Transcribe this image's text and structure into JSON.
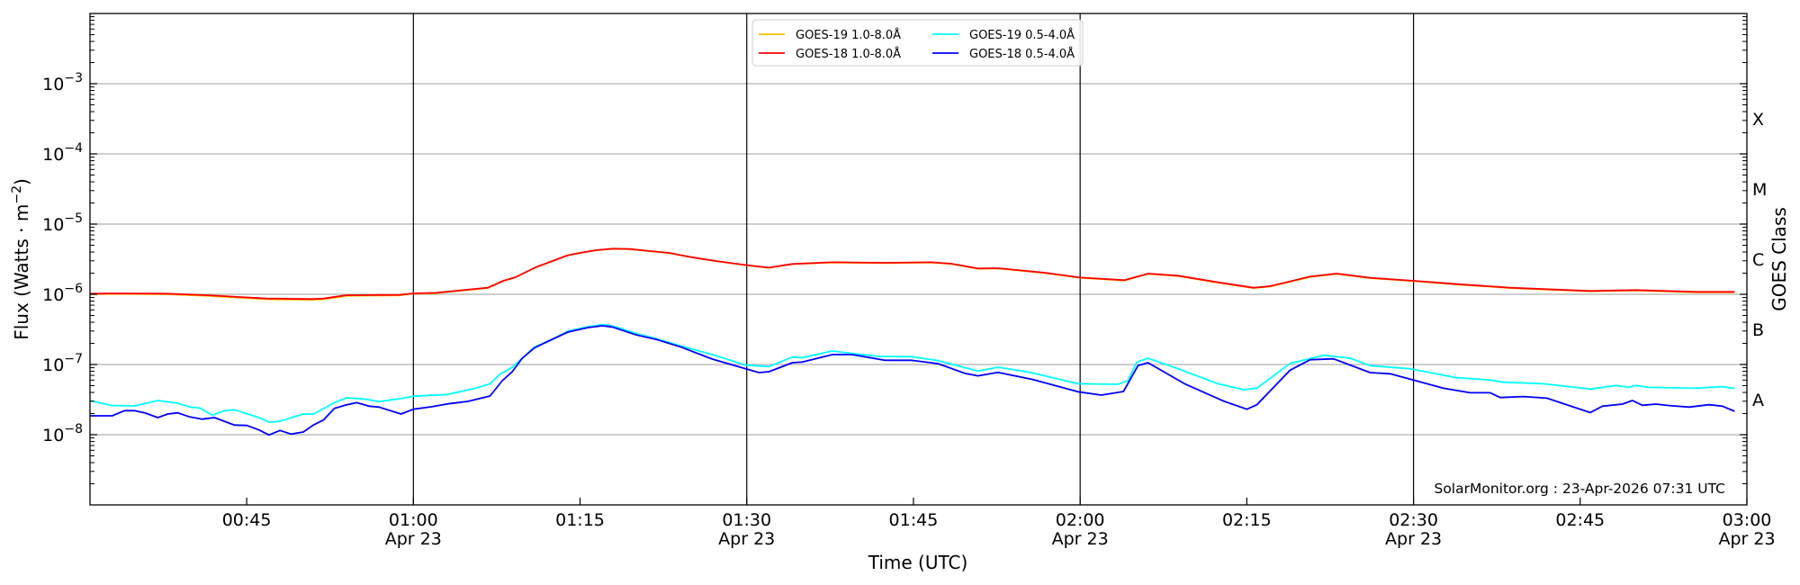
{
  "chart_data": {
    "type": "line",
    "title": "",
    "xlabel": "Time (UTC)",
    "ylabel": "Flux (Watts · m",
    "ylabel_exp": "−2",
    "ylabel_close": ")",
    "right_label": "GOES Class",
    "yscale": "log",
    "ylim_log10": [
      -9,
      -2
    ],
    "xlim_minutes": [
      30.9,
      180
    ],
    "x_units": "minutes after 00:00 UTC, 23-Apr-2026",
    "grid": "horizontal at decades; vertical at half hours",
    "legend_position": "top-center",
    "attribution": "SolarMonitor.org : 23-Apr-2026 07:31 UTC",
    "y_ticks": [
      {
        "log10": -3,
        "base": "10",
        "exp": "−3"
      },
      {
        "log10": -4,
        "base": "10",
        "exp": "−4"
      },
      {
        "log10": -5,
        "base": "10",
        "exp": "−5"
      },
      {
        "log10": -6,
        "base": "10",
        "exp": "−6"
      },
      {
        "log10": -7,
        "base": "10",
        "exp": "−7"
      },
      {
        "log10": -8,
        "base": "10",
        "exp": "−8"
      }
    ],
    "classes": [
      {
        "label": "X",
        "log10": -3.5
      },
      {
        "label": "M",
        "log10": -4.5
      },
      {
        "label": "C",
        "log10": -5.5
      },
      {
        "label": "B",
        "log10": -6.5
      },
      {
        "label": "A",
        "log10": -7.5
      }
    ],
    "x_ticks": [
      {
        "minutes": 45,
        "label": "00:45",
        "date": ""
      },
      {
        "minutes": 60,
        "label": "01:00",
        "date": "Apr 23",
        "vline": true
      },
      {
        "minutes": 75,
        "label": "01:15",
        "date": ""
      },
      {
        "minutes": 90,
        "label": "01:30",
        "date": "Apr 23",
        "vline": true
      },
      {
        "minutes": 105,
        "label": "01:45",
        "date": ""
      },
      {
        "minutes": 120,
        "label": "02:00",
        "date": "Apr 23",
        "vline": true
      },
      {
        "minutes": 135,
        "label": "02:15",
        "date": ""
      },
      {
        "minutes": 150,
        "label": "02:30",
        "date": "Apr 23",
        "vline": true
      },
      {
        "minutes": 165,
        "label": "02:45",
        "date": ""
      },
      {
        "minutes": 180,
        "label": "03:00",
        "date": "Apr 23"
      }
    ],
    "series": [
      {
        "name": "GOES-19 1.0-8.0Å",
        "color": "#ffc000",
        "x": [
          30.9,
          33.4,
          37.8,
          41.4,
          46.8,
          50.8,
          51.9,
          54.0,
          58.7,
          60.0,
          62.0,
          66.7,
          68.1,
          69.2,
          71.0,
          73.9,
          75,
          76.5,
          78,
          79.5,
          81,
          83,
          85,
          87,
          90,
          92,
          94.1,
          97.7,
          102.4,
          106.6,
          108.4,
          110.8,
          112.6,
          116.8,
          120,
          124,
          126.1,
          128.8,
          132.4,
          135.6,
          137.1,
          140.7,
          143.1,
          146.1,
          150,
          153.9,
          158.7,
          165.9,
          170,
          175.4,
          178.9
        ],
        "log10_flux": [
          -5.997,
          -5.995,
          -6.0,
          -6.022,
          -6.072,
          -6.08,
          -6.072,
          -6.022,
          -6.015,
          -5.99,
          -5.983,
          -5.91,
          -5.81,
          -5.758,
          -5.617,
          -5.446,
          -5.412,
          -5.372,
          -5.352,
          -5.357,
          -5.382,
          -5.412,
          -5.472,
          -5.522,
          -5.588,
          -5.623,
          -5.571,
          -5.547,
          -5.555,
          -5.547,
          -5.568,
          -5.636,
          -5.632,
          -5.697,
          -5.766,
          -5.804,
          -5.709,
          -5.74,
          -5.834,
          -5.911,
          -5.89,
          -5.752,
          -5.709,
          -5.77,
          -5.813,
          -5.86,
          -5.911,
          -5.958,
          -5.946,
          -5.972,
          -5.972
        ]
      },
      {
        "name": "GOES-18 1.0-8.0Å",
        "color": "#ff0000",
        "x": [
          30.9,
          33.4,
          37.8,
          41.4,
          46.8,
          50.8,
          51.9,
          54.0,
          58.7,
          60.0,
          62.0,
          66.7,
          68.1,
          69.2,
          71.0,
          73.9,
          75,
          76.5,
          78,
          79.5,
          81,
          83,
          85,
          87,
          90,
          92,
          94.1,
          97.7,
          102.4,
          106.6,
          108.4,
          110.8,
          112.6,
          116.8,
          120,
          124,
          126.1,
          128.8,
          132.4,
          135.6,
          137.1,
          140.7,
          143.1,
          146.1,
          150,
          153.9,
          158.7,
          165.9,
          170,
          175.4,
          178.9
        ],
        "log10_flux": [
          -5.991,
          -5.987,
          -5.991,
          -6.013,
          -6.06,
          -6.068,
          -6.06,
          -6.013,
          -6.009,
          -5.987,
          -5.979,
          -5.906,
          -5.808,
          -5.756,
          -5.615,
          -5.444,
          -5.41,
          -5.37,
          -5.35,
          -5.355,
          -5.38,
          -5.41,
          -5.47,
          -5.52,
          -5.585,
          -5.62,
          -5.568,
          -5.543,
          -5.551,
          -5.543,
          -5.564,
          -5.632,
          -5.628,
          -5.692,
          -5.761,
          -5.799,
          -5.705,
          -5.735,
          -5.829,
          -5.906,
          -5.885,
          -5.748,
          -5.705,
          -5.765,
          -5.808,
          -5.855,
          -5.906,
          -5.953,
          -5.94,
          -5.966,
          -5.966
        ]
      },
      {
        "name": "GOES-19 0.5-4.0Å",
        "color": "#00ffff",
        "x": [
          30.9,
          32.9,
          34.9,
          37.0,
          38.8,
          39.9,
          40.8,
          41.9,
          43.0,
          43.9,
          46.1,
          47.0,
          47.9,
          50.1,
          51.0,
          52.9,
          54.0,
          55.8,
          56.9,
          59.1,
          60.0,
          63.1,
          65.8,
          66.9,
          67.8,
          68.9,
          69.8,
          70.9,
          72.5,
          73.9,
          75.7,
          77.0,
          77.9,
          80.1,
          81.9,
          84.1,
          86.9,
          89.9,
          92.0,
          94.1,
          95.0,
          97.7,
          101.8,
          104.8,
          107.2,
          110.8,
          112.6,
          115.6,
          119.8,
          123.4,
          124.3,
          125.1,
          126.1,
          128.8,
          132.4,
          134.7,
          135.9,
          138.9,
          141.9,
          144.3,
          146.1,
          149.7,
          153.9,
          156.9,
          158.1,
          161.7,
          165.9,
          168.2,
          169.4,
          170.0,
          171.2,
          175.4,
          177.8,
          178.9
        ],
        "log10_flux": [
          -7.517,
          -7.585,
          -7.59,
          -7.513,
          -7.551,
          -7.607,
          -7.62,
          -7.722,
          -7.658,
          -7.645,
          -7.756,
          -7.821,
          -7.812,
          -7.705,
          -7.705,
          -7.543,
          -7.474,
          -7.496,
          -7.53,
          -7.479,
          -7.453,
          -7.427,
          -7.329,
          -7.274,
          -7.137,
          -7.038,
          -6.91,
          -6.752,
          -6.641,
          -6.526,
          -6.462,
          -6.432,
          -6.449,
          -6.56,
          -6.632,
          -6.739,
          -6.859,
          -7.009,
          -7.03,
          -6.893,
          -6.902,
          -6.808,
          -6.885,
          -6.889,
          -6.944,
          -7.094,
          -7.038,
          -7.115,
          -7.274,
          -7.282,
          -7.231,
          -6.966,
          -6.91,
          -7.06,
          -7.274,
          -7.359,
          -7.338,
          -6.983,
          -6.868,
          -6.91,
          -7.017,
          -7.06,
          -7.188,
          -7.222,
          -7.252,
          -7.274,
          -7.35,
          -7.299,
          -7.325,
          -7.299,
          -7.325,
          -7.338,
          -7.316,
          -7.342
        ]
      },
      {
        "name": "GOES-18 0.5-4.0Å",
        "color": "#0000ff",
        "x": [
          30.9,
          32.9,
          34.0,
          34.9,
          35.9,
          37.0,
          37.9,
          38.8,
          39.9,
          41.0,
          42.1,
          43.9,
          45.0,
          46.1,
          47.0,
          48.0,
          49.0,
          50.1,
          51.0,
          51.9,
          52.9,
          54.0,
          54.9,
          56.0,
          56.9,
          58.9,
          60.0,
          61.6,
          63.1,
          64.9,
          66.9,
          68.0,
          68.9,
          69.8,
          70.9,
          72.5,
          73.9,
          75.7,
          77.0,
          77.9,
          80.1,
          81.9,
          84.1,
          86.9,
          91.1,
          92.0,
          94.1,
          95.0,
          97.7,
          99.5,
          102.4,
          104.8,
          107.2,
          109.6,
          110.8,
          112.6,
          115.6,
          119.8,
          121.9,
          123.9,
          125.2,
          126.1,
          129.4,
          132.9,
          135.0,
          135.9,
          138.9,
          140.7,
          142.8,
          146.1,
          147.9,
          152.7,
          155.1,
          156.9,
          157.8,
          159.9,
          162.0,
          165.9,
          167.0,
          168.8,
          169.7,
          170.6,
          171.8,
          173.0,
          174.8,
          176.6,
          177.8,
          178.9
        ],
        "log10_flux": [
          -7.731,
          -7.731,
          -7.658,
          -7.658,
          -7.692,
          -7.756,
          -7.705,
          -7.688,
          -7.748,
          -7.778,
          -7.756,
          -7.863,
          -7.868,
          -7.932,
          -8.004,
          -7.94,
          -7.991,
          -7.962,
          -7.863,
          -7.791,
          -7.624,
          -7.573,
          -7.543,
          -7.594,
          -7.607,
          -7.705,
          -7.637,
          -7.603,
          -7.56,
          -7.526,
          -7.449,
          -7.231,
          -7.103,
          -6.91,
          -6.761,
          -6.641,
          -6.538,
          -6.474,
          -6.449,
          -6.466,
          -6.581,
          -6.645,
          -6.752,
          -6.923,
          -7.115,
          -7.103,
          -6.974,
          -6.966,
          -6.859,
          -6.859,
          -6.94,
          -6.94,
          -6.987,
          -7.124,
          -7.162,
          -7.111,
          -7.209,
          -7.389,
          -7.436,
          -7.385,
          -7.017,
          -6.974,
          -7.274,
          -7.521,
          -7.637,
          -7.573,
          -7.081,
          -6.932,
          -6.919,
          -7.115,
          -7.132,
          -7.338,
          -7.402,
          -7.402,
          -7.47,
          -7.457,
          -7.479,
          -7.684,
          -7.594,
          -7.564,
          -7.513,
          -7.581,
          -7.564,
          -7.585,
          -7.607,
          -7.573,
          -7.594,
          -7.667
        ]
      }
    ]
  }
}
